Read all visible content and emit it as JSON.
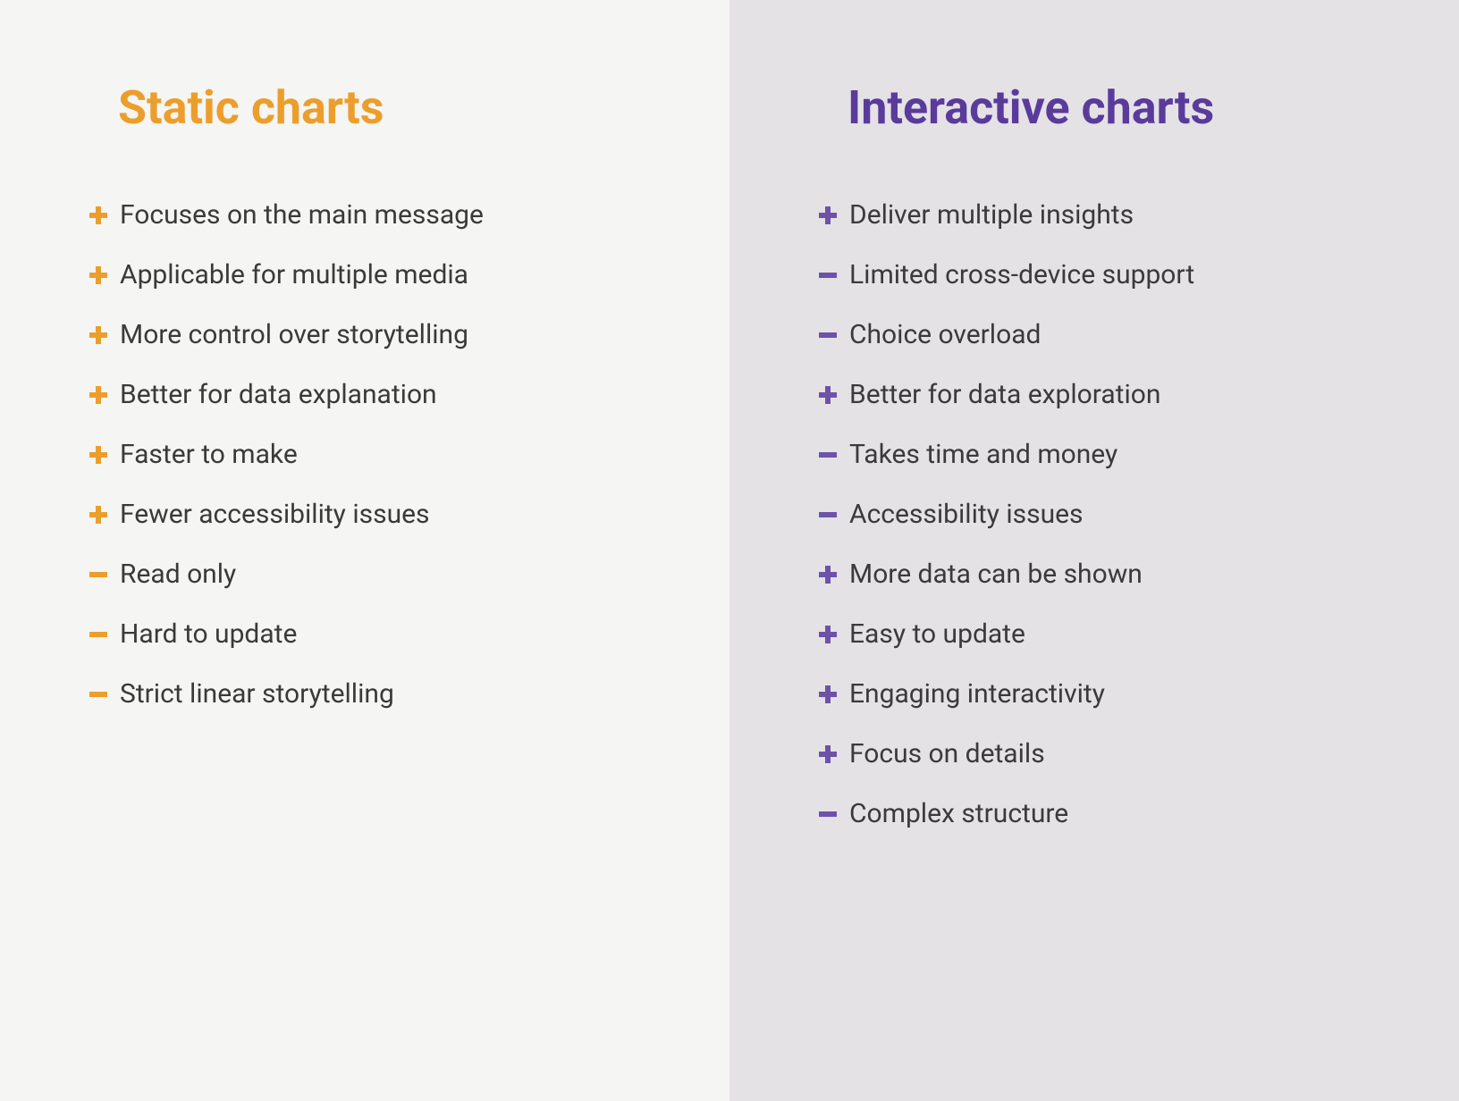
{
  "type": "infographic",
  "layout": "two-column-comparison",
  "background_colors": {
    "left": "#f5f5f3",
    "right": "#e4e2e5"
  },
  "text_color": "#3a3a3a",
  "item_fontsize": 30,
  "title_fontsize": 52,
  "title_fontweight": 700,
  "columns": {
    "left": {
      "title": "Static charts",
      "title_color": "#ec9e2c",
      "icon_color": "#ec9e2c",
      "items": [
        {
          "sign": "plus",
          "text": "Focuses on the main message"
        },
        {
          "sign": "plus",
          "text": "Applicable for multiple media"
        },
        {
          "sign": "plus",
          "text": "More control over storytelling"
        },
        {
          "sign": "plus",
          "text": "Better for data explanation"
        },
        {
          "sign": "plus",
          "text": "Faster to make"
        },
        {
          "sign": "plus",
          "text": "Fewer accessibility issues"
        },
        {
          "sign": "minus",
          "text": "Read only"
        },
        {
          "sign": "minus",
          "text": "Hard to update"
        },
        {
          "sign": "minus",
          "text": "Strict linear storytelling"
        }
      ]
    },
    "right": {
      "title": "Interactive charts",
      "title_color": "#5a3b9c",
      "icon_color": "#6e52a8",
      "items": [
        {
          "sign": "plus",
          "text": "Deliver multiple insights"
        },
        {
          "sign": "minus",
          "text": "Limited cross-device support"
        },
        {
          "sign": "minus",
          "text": "Choice overload"
        },
        {
          "sign": "plus",
          "text": "Better for data exploration"
        },
        {
          "sign": "minus",
          "text": "Takes time and money"
        },
        {
          "sign": "minus",
          "text": "Accessibility issues"
        },
        {
          "sign": "plus",
          "text": "More data can be shown"
        },
        {
          "sign": "plus",
          "text": "Easy to update"
        },
        {
          "sign": "plus",
          "text": "Engaging interactivity"
        },
        {
          "sign": "plus",
          "text": "Focus on details"
        },
        {
          "sign": "minus",
          "text": "Complex structure"
        }
      ]
    }
  }
}
